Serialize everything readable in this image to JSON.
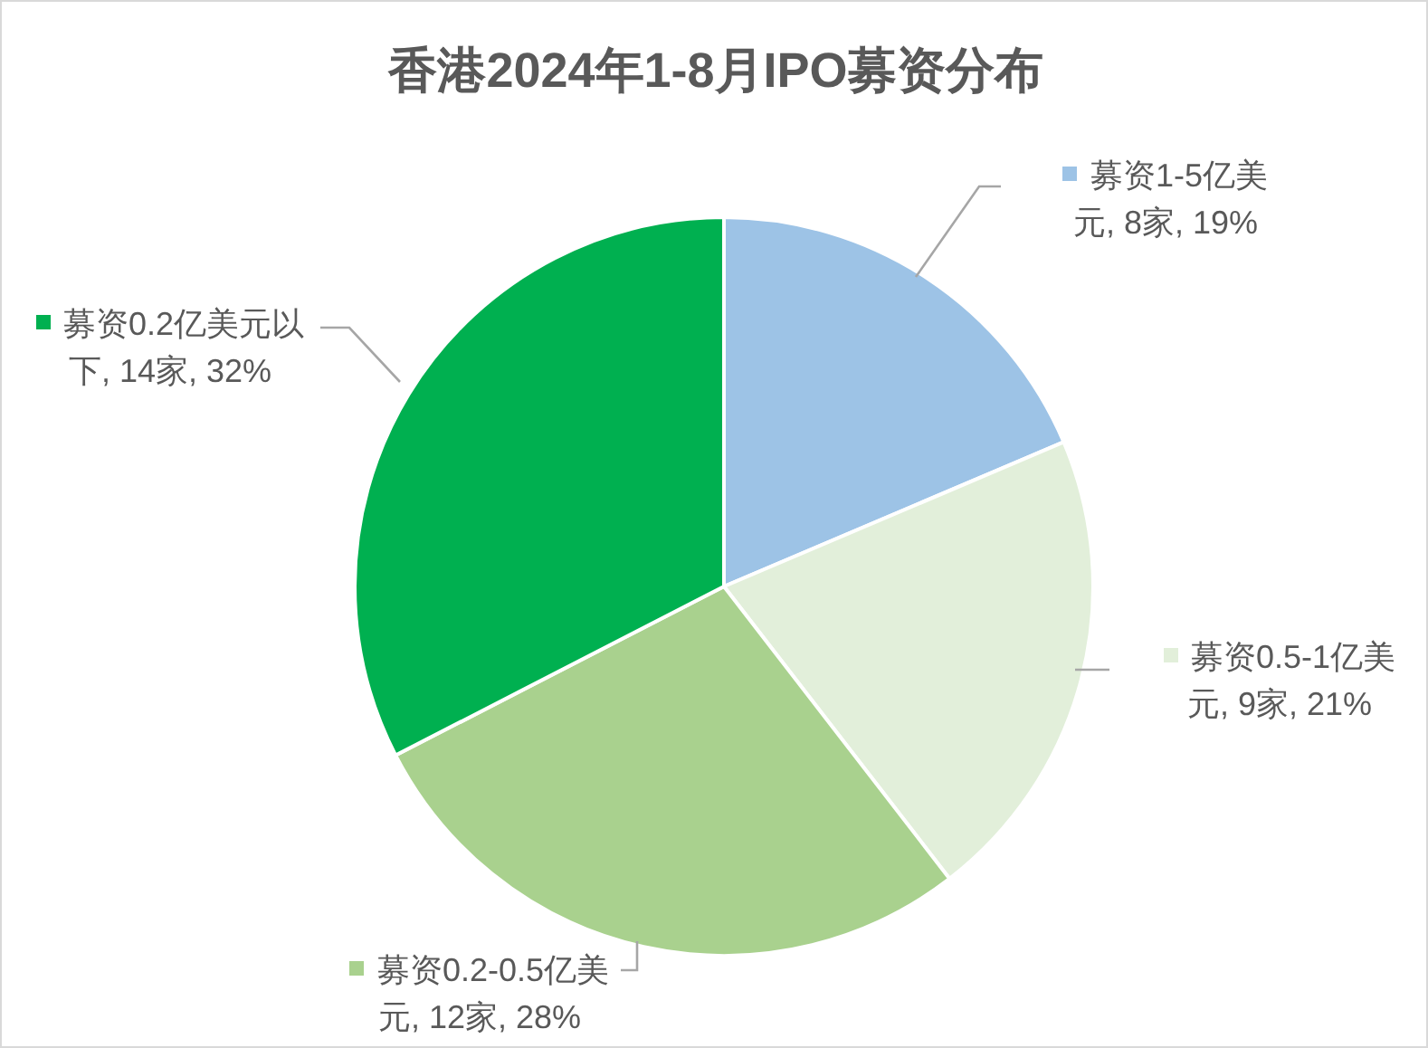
{
  "chart_data": {
    "type": "pie",
    "title": "香港2024年1-8月IPO募资分布",
    "categories": [
      "募资1-5亿美元",
      "募资0.5-1亿美元",
      "募资0.2-0.5亿美元",
      "募资0.2亿美元以下"
    ],
    "values": [
      8,
      9,
      12,
      14
    ],
    "value_labels": [
      "8家, 19%",
      "9家, 21%",
      "12家, 28%",
      "14家, 32%"
    ],
    "colors": [
      "#9dc3e6",
      "#e2efda",
      "#a9d18e",
      "#00b050"
    ],
    "legend": "left"
  }
}
